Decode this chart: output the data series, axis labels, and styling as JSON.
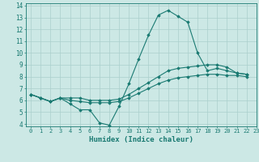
{
  "title": "",
  "xlabel": "Humidex (Indice chaleur)",
  "ylabel": "",
  "xlim": [
    -0.5,
    23
  ],
  "ylim": [
    3.8,
    14.2
  ],
  "xticks": [
    0,
    1,
    2,
    3,
    4,
    5,
    6,
    7,
    8,
    9,
    10,
    11,
    12,
    13,
    14,
    15,
    16,
    17,
    18,
    19,
    20,
    21,
    22,
    23
  ],
  "yticks": [
    4,
    5,
    6,
    7,
    8,
    9,
    10,
    11,
    12,
    13,
    14
  ],
  "background_color": "#cce8e5",
  "grid_color": "#aacfcc",
  "line_color": "#1a7a72",
  "series": [
    [
      6.5,
      6.2,
      5.9,
      6.2,
      5.7,
      5.2,
      5.2,
      4.1,
      3.9,
      5.5,
      7.4,
      9.5,
      11.5,
      13.2,
      13.6,
      13.1,
      12.6,
      10.0,
      8.5,
      8.7,
      8.5,
      8.3,
      8.2
    ],
    [
      6.5,
      6.2,
      5.9,
      6.2,
      6.2,
      6.2,
      6.0,
      6.0,
      6.0,
      6.1,
      6.5,
      7.0,
      7.5,
      8.0,
      8.5,
      8.7,
      8.8,
      8.9,
      9.0,
      9.0,
      8.8,
      8.3,
      8.2
    ],
    [
      6.5,
      6.2,
      5.9,
      6.2,
      6.0,
      5.9,
      5.8,
      5.8,
      5.8,
      5.9,
      6.2,
      6.6,
      7.0,
      7.4,
      7.7,
      7.9,
      8.0,
      8.1,
      8.2,
      8.2,
      8.1,
      8.1,
      8.0
    ]
  ]
}
